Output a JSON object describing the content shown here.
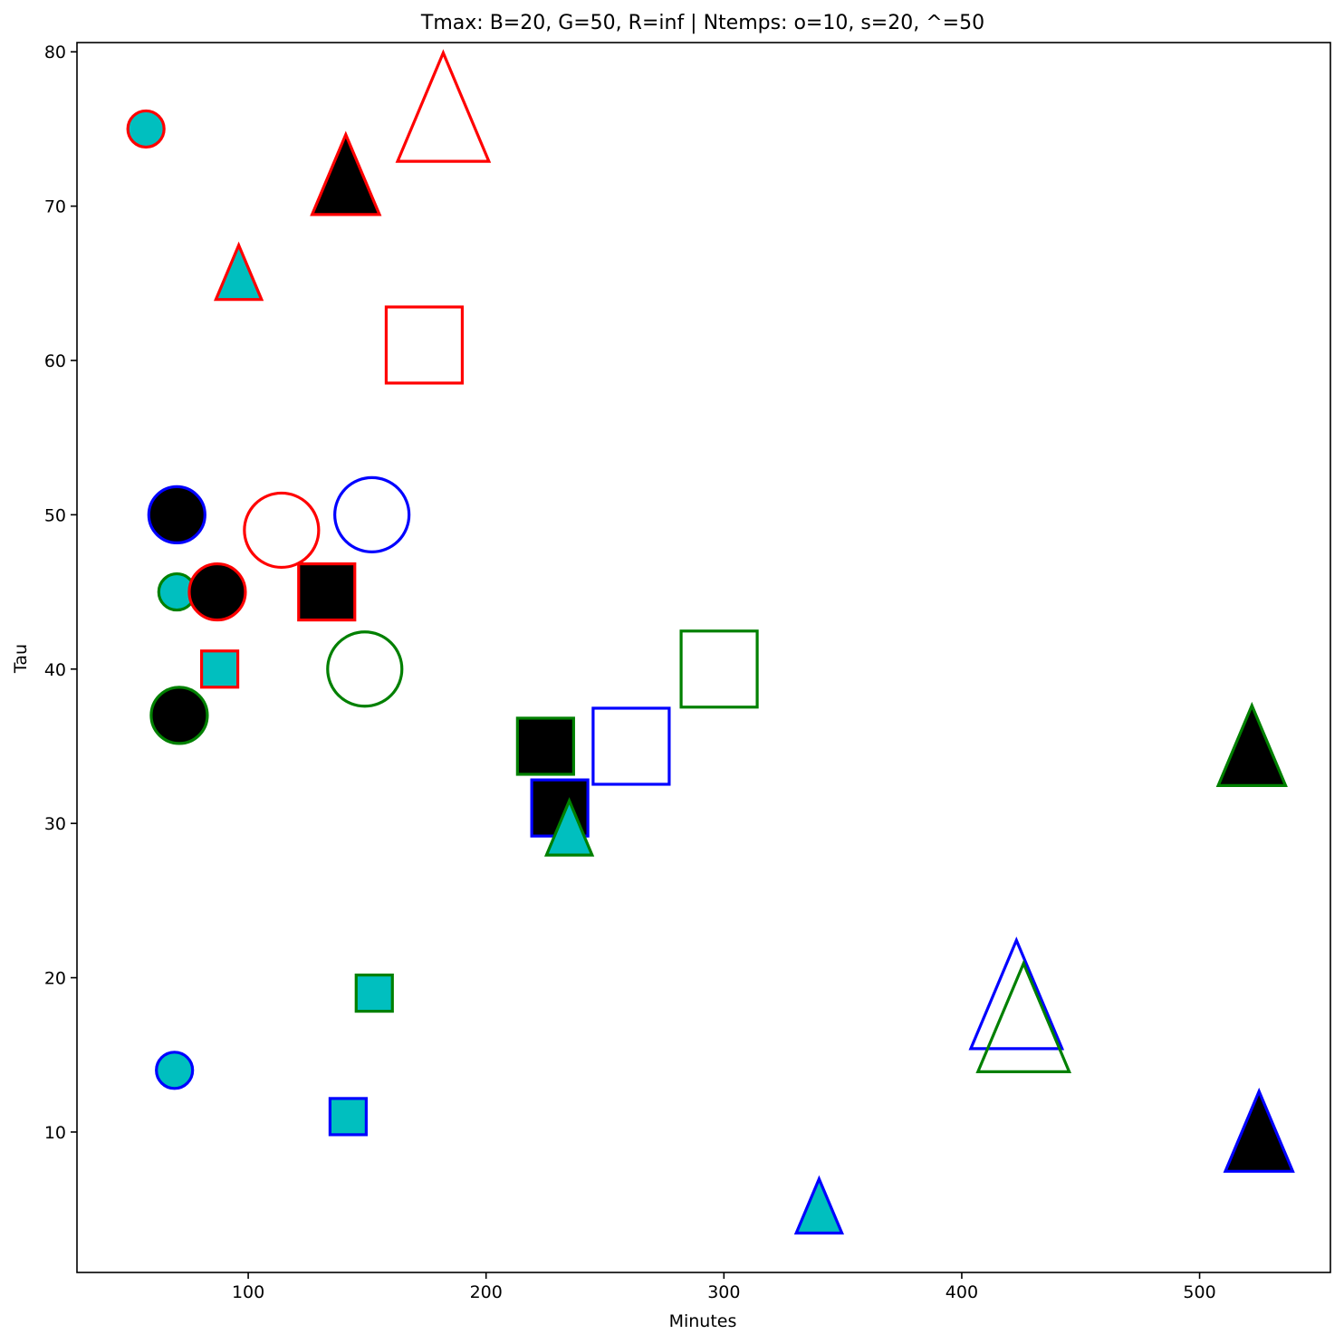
{
  "chart_data": {
    "type": "scatter",
    "title": "Tmax: B=20, G=50, R=inf | Ntemps: o=10, s=20, ^=50",
    "xlabel": "Minutes",
    "ylabel": "Tau",
    "xlim": [
      28,
      555
    ],
    "ylim": [
      0.9,
      80.6
    ],
    "xticks": [
      100,
      200,
      300,
      400,
      500
    ],
    "yticks": [
      10,
      20,
      30,
      40,
      50,
      60,
      70,
      80
    ],
    "grid": false,
    "colors": {
      "edge_B": "#0000ff",
      "edge_G": "#008000",
      "edge_R": "#ff0000",
      "fill_cyan": "#00bfbf",
      "fill_black": "#000000",
      "fill_none": "none"
    },
    "points": [
      {
        "x": 57,
        "y": 75,
        "marker": "circle",
        "size": "small",
        "edge": "R",
        "fill": "cyan"
      },
      {
        "x": 70,
        "y": 45,
        "marker": "circle",
        "size": "small",
        "edge": "G",
        "fill": "cyan"
      },
      {
        "x": 69,
        "y": 14,
        "marker": "circle",
        "size": "small",
        "edge": "B",
        "fill": "cyan"
      },
      {
        "x": 70,
        "y": 50,
        "marker": "circle",
        "size": "medium",
        "edge": "B",
        "fill": "black"
      },
      {
        "x": 87,
        "y": 45,
        "marker": "circle",
        "size": "medium",
        "edge": "R",
        "fill": "black"
      },
      {
        "x": 71,
        "y": 37,
        "marker": "circle",
        "size": "medium",
        "edge": "G",
        "fill": "black"
      },
      {
        "x": 114,
        "y": 49,
        "marker": "circle",
        "size": "large",
        "edge": "R",
        "fill": "none"
      },
      {
        "x": 152,
        "y": 50,
        "marker": "circle",
        "size": "large",
        "edge": "B",
        "fill": "none"
      },
      {
        "x": 149,
        "y": 40,
        "marker": "circle",
        "size": "large",
        "edge": "G",
        "fill": "none"
      },
      {
        "x": 88,
        "y": 40,
        "marker": "square",
        "size": "small",
        "edge": "R",
        "fill": "cyan"
      },
      {
        "x": 153,
        "y": 19,
        "marker": "square",
        "size": "small",
        "edge": "G",
        "fill": "cyan"
      },
      {
        "x": 142,
        "y": 11,
        "marker": "square",
        "size": "small",
        "edge": "B",
        "fill": "cyan"
      },
      {
        "x": 133,
        "y": 45,
        "marker": "square",
        "size": "medium",
        "edge": "R",
        "fill": "black"
      },
      {
        "x": 225,
        "y": 35,
        "marker": "square",
        "size": "medium",
        "edge": "G",
        "fill": "black"
      },
      {
        "x": 231,
        "y": 31,
        "marker": "square",
        "size": "medium",
        "edge": "B",
        "fill": "black"
      },
      {
        "x": 174,
        "y": 61,
        "marker": "square",
        "size": "large",
        "edge": "R",
        "fill": "none"
      },
      {
        "x": 261,
        "y": 35,
        "marker": "square",
        "size": "large",
        "edge": "B",
        "fill": "none"
      },
      {
        "x": 298,
        "y": 40,
        "marker": "square",
        "size": "large",
        "edge": "G",
        "fill": "none"
      },
      {
        "x": 96,
        "y": 65,
        "marker": "triangle",
        "size": "small",
        "edge": "R",
        "fill": "cyan"
      },
      {
        "x": 235,
        "y": 29,
        "marker": "triangle",
        "size": "small",
        "edge": "G",
        "fill": "cyan"
      },
      {
        "x": 340,
        "y": 4.5,
        "marker": "triangle",
        "size": "small",
        "edge": "B",
        "fill": "cyan"
      },
      {
        "x": 141,
        "y": 71,
        "marker": "triangle",
        "size": "medium",
        "edge": "R",
        "fill": "black"
      },
      {
        "x": 522,
        "y": 34,
        "marker": "triangle",
        "size": "medium",
        "edge": "G",
        "fill": "black"
      },
      {
        "x": 525,
        "y": 9,
        "marker": "triangle",
        "size": "medium",
        "edge": "B",
        "fill": "black"
      },
      {
        "x": 182,
        "y": 75,
        "marker": "triangle",
        "size": "large",
        "edge": "R",
        "fill": "none"
      },
      {
        "x": 423,
        "y": 17.5,
        "marker": "triangle",
        "size": "large",
        "edge": "B",
        "fill": "none"
      },
      {
        "x": 426,
        "y": 16,
        "marker": "triangle",
        "size": "large",
        "edge": "G",
        "fill": "none"
      }
    ]
  }
}
